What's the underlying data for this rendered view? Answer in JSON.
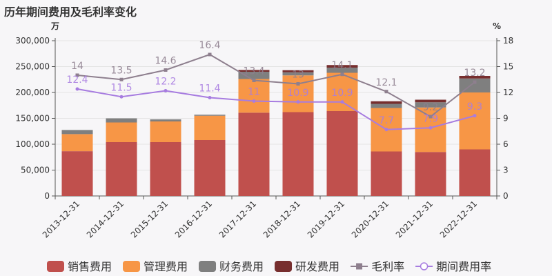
{
  "chart_data": {
    "type": "bar",
    "title": "历年期间费用及毛利率变化",
    "y_left_unit": "万",
    "y_right_unit": "%",
    "ylim_left": [
      0,
      300000
    ],
    "ylim_right": [
      0,
      18
    ],
    "y_left_ticks": [
      "0",
      "50,000",
      "100,000",
      "150,000",
      "200,000",
      "250,000",
      "300,000"
    ],
    "y_right_ticks": [
      "0",
      "3",
      "6",
      "9",
      "12",
      "15",
      "18"
    ],
    "categories": [
      "2013-12-31",
      "2014-12-31",
      "2015-12-31",
      "2016-12-31",
      "2017-12-31",
      "2018-12-31",
      "2019-12-31",
      "2020-12-31",
      "2021-12-31",
      "2022-12-31"
    ],
    "stacked_series": [
      {
        "name": "销售费用",
        "color": "#c0504d",
        "values": [
          86500,
          104000,
          104000,
          108000,
          161000,
          162000,
          164000,
          86000,
          85000,
          90000
        ]
      },
      {
        "name": "管理费用",
        "color": "#f79646",
        "values": [
          33000,
          38000,
          40000,
          47000,
          65000,
          71000,
          74000,
          84000,
          86000,
          110000
        ]
      },
      {
        "name": "财务费用",
        "color": "#7f7f7f",
        "values": [
          8000,
          8000,
          4000,
          2000,
          14000,
          6000,
          10000,
          8000,
          10000,
          27000
        ]
      },
      {
        "name": "研发费用",
        "color": "#772e2e",
        "values": [
          0,
          0,
          0,
          0,
          3500,
          4000,
          5000,
          5000,
          5000,
          5000
        ]
      }
    ],
    "line_series": [
      {
        "name": "毛利率",
        "color": "#8e7f8e",
        "marker": "square",
        "values": [
          14,
          13.5,
          14.6,
          16.4,
          13.4,
          13,
          14.1,
          12.1,
          9.2,
          13.2
        ]
      },
      {
        "name": "期间费用率",
        "color": "#a77ce0",
        "marker": "circle",
        "values": [
          12.4,
          11.5,
          12.2,
          11.4,
          11,
          10.9,
          10.9,
          7.7,
          7.9,
          9.3
        ]
      }
    ],
    "legend_position": "bottom"
  }
}
